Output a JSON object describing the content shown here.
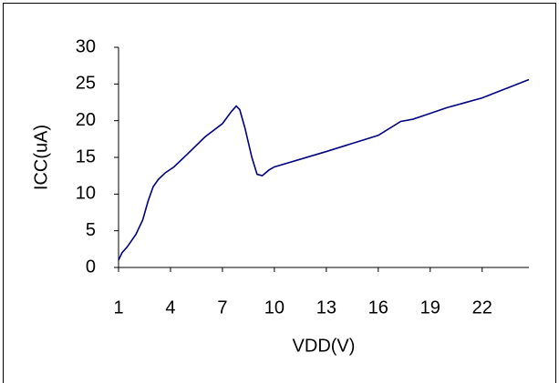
{
  "chart_data": {
    "type": "line",
    "x_label": "VDD(V)",
    "y_label": "ICC(uA)",
    "series": [
      {
        "color": "#000080",
        "x": [
          1,
          1.2,
          1.5,
          2,
          2.4,
          2.7,
          3,
          3.3,
          3.7,
          4.2,
          5,
          6,
          7,
          7.5,
          7.8,
          8,
          8.3,
          8.7,
          9,
          9.3,
          9.7,
          10,
          13,
          16,
          17.3,
          18,
          19,
          20,
          22,
          24.7
        ],
        "values": [
          1,
          2,
          2.8,
          4.5,
          6.5,
          9,
          11,
          12,
          12.9,
          13.7,
          15.5,
          17.8,
          19.6,
          21.2,
          22,
          21.5,
          19,
          15,
          12.7,
          12.5,
          13.3,
          13.7,
          15.8,
          18,
          19.9,
          20.2,
          21,
          21.8,
          23.1,
          25.6
        ]
      }
    ],
    "xlim": [
      1,
      24.7
    ],
    "xticks": [
      1,
      4,
      7,
      10,
      13,
      16,
      19,
      22
    ],
    "ylim": [
      0,
      30
    ],
    "yticks": [
      0,
      5,
      10,
      15,
      20,
      25,
      30
    ],
    "grid": false
  }
}
